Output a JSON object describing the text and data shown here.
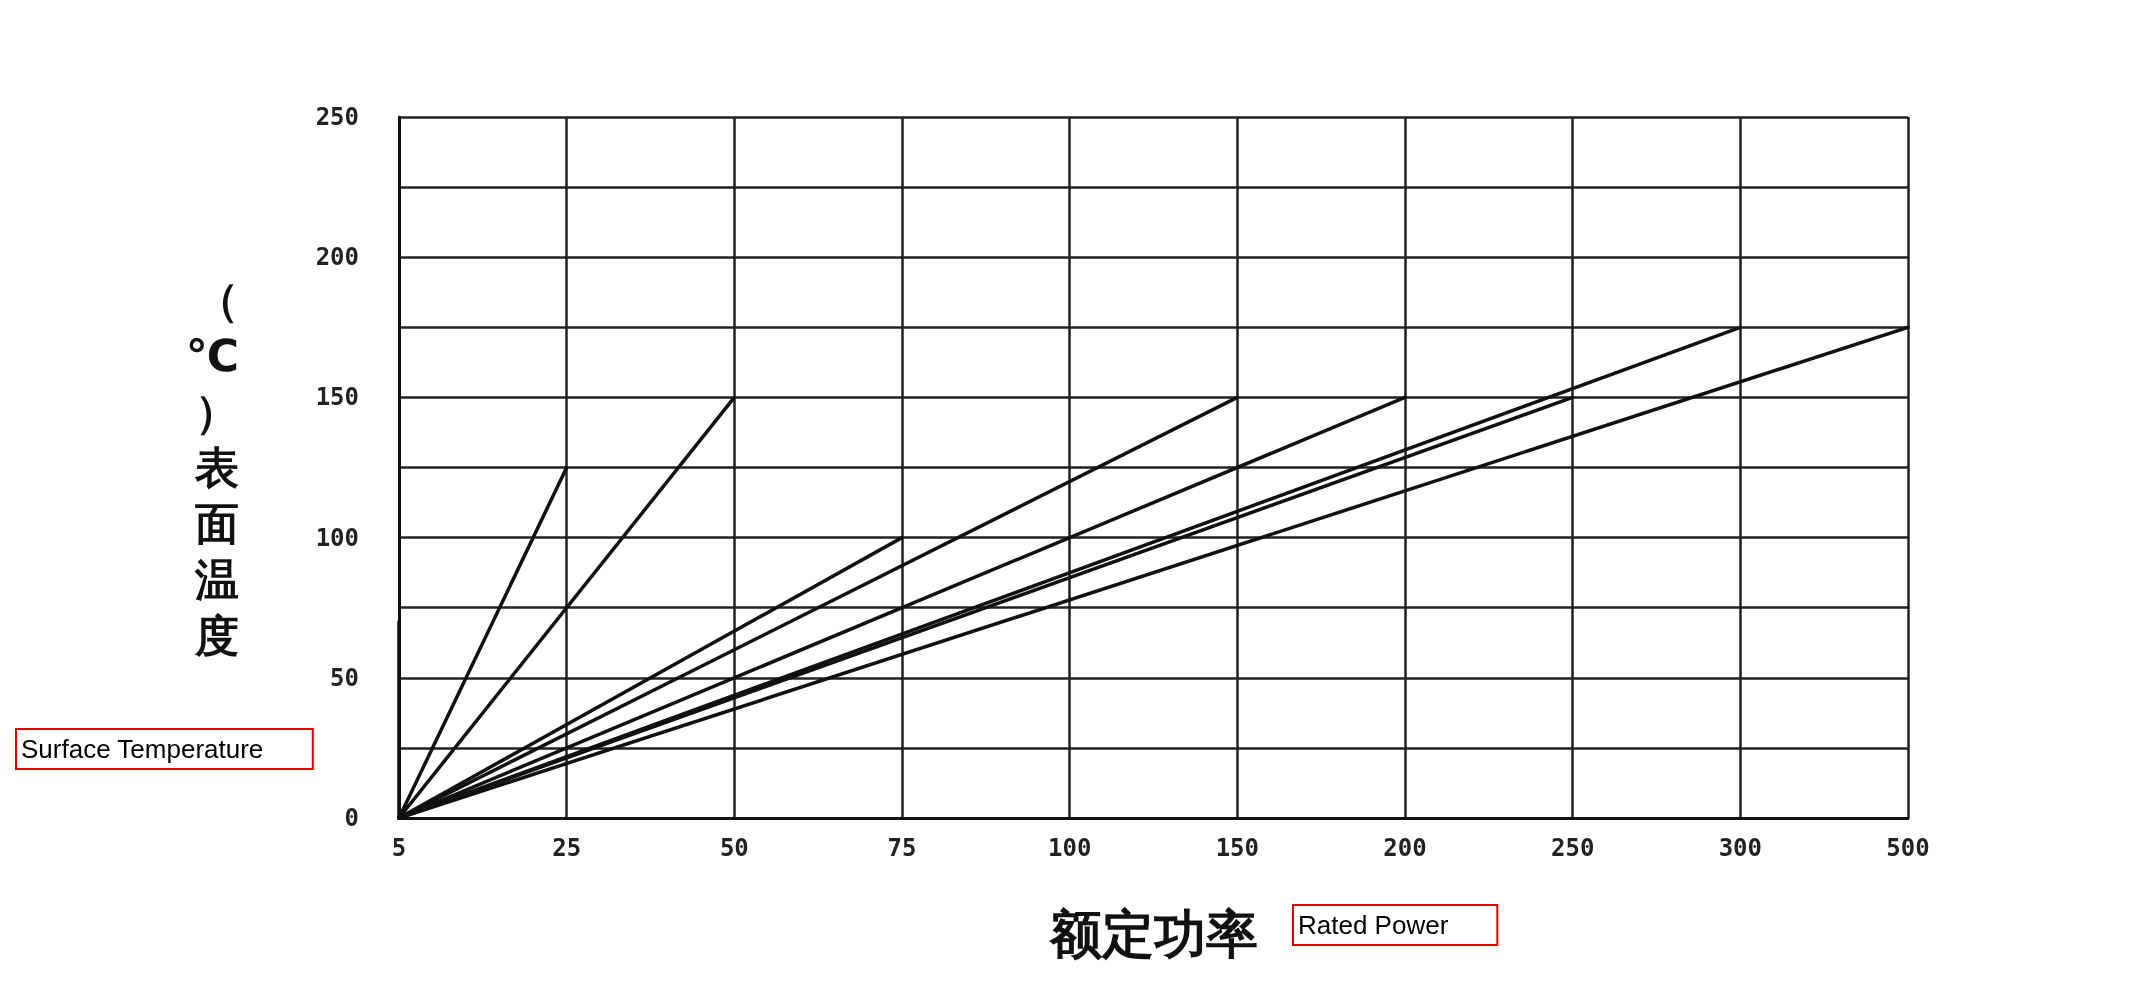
{
  "chart_data": {
    "type": "line",
    "xlabel": "额定功率",
    "ylabel": "（℃）表面温度",
    "categories": [
      "5",
      "25",
      "50",
      "75",
      "100",
      "150",
      "200",
      "250",
      "300",
      "500"
    ],
    "series": [
      {
        "color": "#111111",
        "x": [
          "5",
          "5"
        ],
        "values": [
          0,
          70
        ]
      },
      {
        "color": "#111111",
        "x": [
          "5",
          "25"
        ],
        "values": [
          0,
          125
        ]
      },
      {
        "color": "#111111",
        "x": [
          "5",
          "50"
        ],
        "values": [
          0,
          150
        ]
      },
      {
        "color": "#111111",
        "x": [
          "5",
          "75"
        ],
        "values": [
          0,
          100
        ]
      },
      {
        "color": "#111111",
        "x": [
          "5",
          "150"
        ],
        "values": [
          0,
          150
        ]
      },
      {
        "color": "#111111",
        "x": [
          "5",
          "200"
        ],
        "values": [
          0,
          150
        ]
      },
      {
        "color": "#111111",
        "x": [
          "5",
          "250"
        ],
        "values": [
          0,
          150
        ]
      },
      {
        "color": "#111111",
        "x": [
          "5",
          "300"
        ],
        "values": [
          0,
          175
        ]
      },
      {
        "color": "#111111",
        "x": [
          "5",
          "500"
        ],
        "values": [
          0,
          175
        ]
      }
    ],
    "ylim": [
      0,
      250
    ],
    "yticks": [
      0,
      {
        "value": 25,
        "label": null
      },
      50,
      {
        "value": 75,
        "label": null
      },
      100,
      {
        "value": 125,
        "label": null
      },
      150,
      {
        "value": 175,
        "label": null
      },
      200,
      {
        "value": 225,
        "label": null
      },
      250
    ],
    "grid": true,
    "marker": "none",
    "line_style": "solid",
    "annotations": [
      "Surface Temperature",
      "Rated Power"
    ]
  }
}
